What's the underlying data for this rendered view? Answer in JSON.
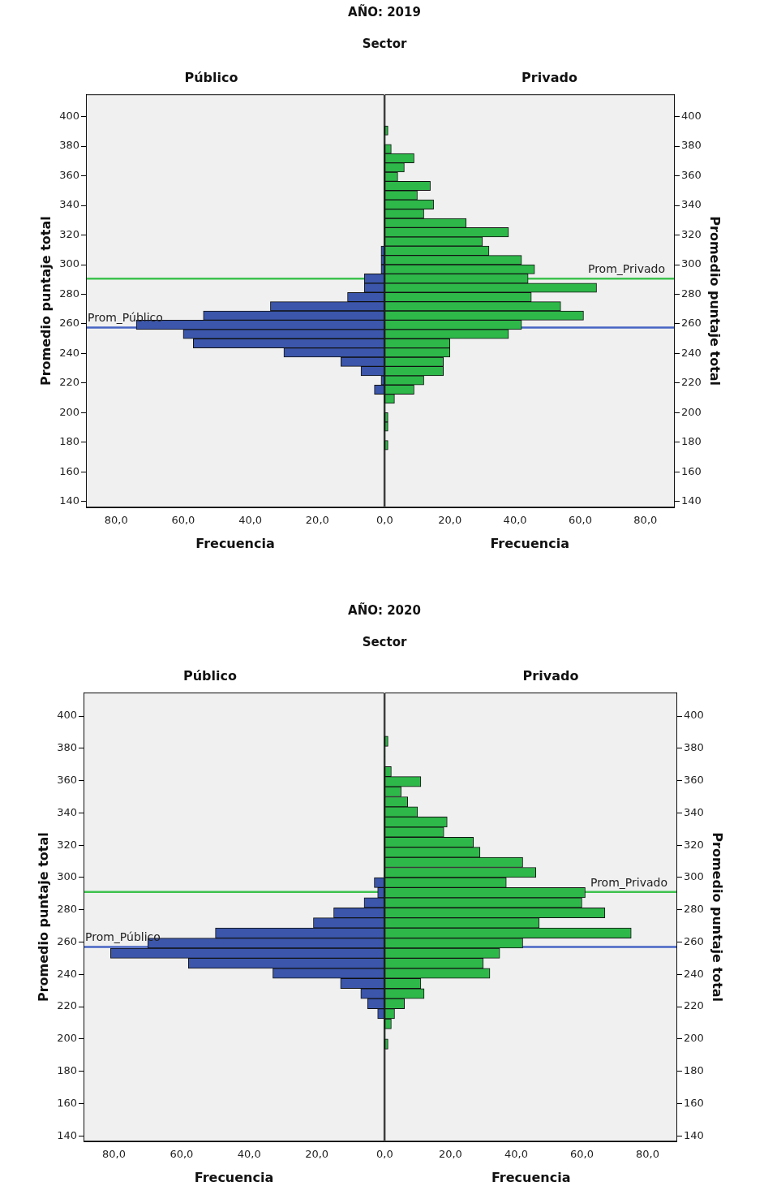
{
  "chart_data": [
    {
      "type": "histogram",
      "orientation": "horizontal",
      "title": "Público",
      "annotations": [
        "AÑO: 2019",
        "Sector"
      ],
      "xlabel": "Frecuencia",
      "ylabel": "Promedio puntaje total",
      "bins": [
        175,
        181.25,
        187.5,
        193.75,
        200,
        206.25,
        212.5,
        218.75,
        225,
        231.25,
        237.5,
        243.75,
        250,
        256.25,
        262.5,
        268.75,
        275,
        281.25,
        287.5,
        293.75,
        300,
        306.25,
        312.5,
        318.75,
        325,
        331.25,
        337.5,
        343.75,
        350,
        356.25,
        362.5,
        368.75,
        375,
        381.25,
        387.5,
        393.75
      ],
      "color": "#3b56aa",
      "values": [
        0,
        0,
        0,
        0,
        0,
        0,
        3,
        1,
        7,
        13,
        30,
        57,
        60,
        74,
        54,
        34,
        11,
        6,
        6,
        1,
        1,
        1,
        0,
        0,
        0,
        0,
        0,
        0,
        0,
        0,
        0,
        0,
        0,
        0,
        0
      ],
      "xlim": [
        89,
        0
      ],
      "xticks": [
        {
          "value": 80,
          "label": "80,0"
        },
        {
          "value": 60,
          "label": "60,0"
        },
        {
          "value": 40,
          "label": "40,0"
        },
        {
          "value": 20,
          "label": "20,0"
        },
        {
          "value": 0,
          "label": null
        }
      ],
      "ylim": [
        136,
        415
      ],
      "yticks": [
        140,
        160,
        180,
        200,
        220,
        240,
        260,
        280,
        300,
        320,
        340,
        360,
        380,
        400
      ],
      "ref_lines": [
        {
          "axis": "y",
          "value": 257.5,
          "label": "Prom_Público",
          "color": "#4664c4"
        },
        {
          "axis": "y",
          "value": 290.5,
          "color": "#3ec24f"
        }
      ]
    },
    {
      "type": "histogram",
      "orientation": "horizontal",
      "title": "Privado",
      "xlabel": "Frecuencia",
      "ylabel": "Promedio puntaje total",
      "bins": [
        175,
        181.25,
        187.5,
        193.75,
        200,
        206.25,
        212.5,
        218.75,
        225,
        231.25,
        237.5,
        243.75,
        250,
        256.25,
        262.5,
        268.75,
        275,
        281.25,
        287.5,
        293.75,
        300,
        306.25,
        312.5,
        318.75,
        325,
        331.25,
        337.5,
        343.75,
        350,
        356.25,
        362.5,
        368.75,
        375,
        381.25,
        387.5,
        393.75
      ],
      "color": "#2eb84a",
      "values": [
        1,
        0,
        1,
        1,
        0,
        3,
        9,
        12,
        18,
        18,
        20,
        20,
        38,
        42,
        61,
        54,
        45,
        65,
        44,
        46,
        42,
        32,
        30,
        38,
        25,
        12,
        15,
        10,
        14,
        4,
        6,
        9,
        2,
        0,
        1
      ],
      "xlim": [
        0,
        89
      ],
      "xticks": [
        {
          "value": 0,
          "label": "0,0"
        },
        {
          "value": 20,
          "label": "20,0"
        },
        {
          "value": 40,
          "label": "40,0"
        },
        {
          "value": 60,
          "label": "60,0"
        },
        {
          "value": 80,
          "label": "80,0"
        }
      ],
      "ylim": [
        136,
        415
      ],
      "yticks": [
        140,
        160,
        180,
        200,
        220,
        240,
        260,
        280,
        300,
        320,
        340,
        360,
        380,
        400
      ],
      "ref_lines": [
        {
          "axis": "y",
          "value": 290.5,
          "label": "Prom_Privado",
          "color": "#3ec24f"
        },
        {
          "axis": "y",
          "value": 257.5,
          "color": "#4664c4"
        }
      ]
    },
    {
      "type": "histogram",
      "orientation": "horizontal",
      "title": "Público",
      "annotations": [
        "AÑO: 2020",
        "Sector"
      ],
      "xlabel": "Frecuencia",
      "ylabel": "Promedio puntaje total",
      "bins": [
        193.75,
        200,
        206.25,
        212.5,
        218.75,
        225,
        231.25,
        237.5,
        243.75,
        250,
        256.25,
        262.5,
        268.75,
        275,
        281.25,
        287.5,
        293.75,
        300,
        306.25,
        312.5,
        318.75,
        325,
        331.25,
        337.5,
        343.75,
        350,
        356.25,
        362.5,
        368.75,
        375,
        381.25,
        387.5
      ],
      "color": "#3b56aa",
      "values": [
        0,
        0,
        0,
        2,
        5,
        7,
        13,
        33,
        58,
        81,
        70,
        50,
        21,
        15,
        6,
        2,
        3,
        0,
        0,
        0,
        0,
        0,
        0,
        0,
        0,
        0,
        0,
        0,
        0,
        0,
        0
      ],
      "xlim": [
        89,
        0
      ],
      "xticks": [
        {
          "value": 80,
          "label": "80,0"
        },
        {
          "value": 60,
          "label": "60,0"
        },
        {
          "value": 40,
          "label": "40,0"
        },
        {
          "value": 20,
          "label": "20,0"
        },
        {
          "value": 0,
          "label": null
        }
      ],
      "ylim": [
        136.5,
        414.5
      ],
      "yticks": [
        140,
        160,
        180,
        200,
        220,
        240,
        260,
        280,
        300,
        320,
        340,
        360,
        380,
        400
      ],
      "ref_lines": [
        {
          "axis": "y",
          "value": 257,
          "label": "Prom_Público",
          "color": "#4664c4"
        },
        {
          "axis": "y",
          "value": 291,
          "color": "#3ec24f"
        }
      ]
    },
    {
      "type": "histogram",
      "orientation": "horizontal",
      "title": "Privado",
      "xlabel": "Frecuencia",
      "ylabel": "Promedio puntaje total",
      "bins": [
        193.75,
        200,
        206.25,
        212.5,
        218.75,
        225,
        231.25,
        237.5,
        243.75,
        250,
        256.25,
        262.5,
        268.75,
        275,
        281.25,
        287.5,
        293.75,
        300,
        306.25,
        312.5,
        318.75,
        325,
        331.25,
        337.5,
        343.75,
        350,
        356.25,
        362.5,
        368.75,
        375,
        381.25,
        387.5
      ],
      "color": "#2eb84a",
      "values": [
        1,
        0,
        2,
        3,
        6,
        12,
        11,
        32,
        30,
        35,
        42,
        75,
        47,
        67,
        60,
        61,
        37,
        46,
        42,
        29,
        27,
        18,
        19,
        10,
        7,
        5,
        11,
        2,
        0,
        0,
        1
      ],
      "xlim": [
        0,
        89
      ],
      "xticks": [
        {
          "value": 0,
          "label": "0,0"
        },
        {
          "value": 20,
          "label": "20,0"
        },
        {
          "value": 40,
          "label": "40,0"
        },
        {
          "value": 60,
          "label": "60,0"
        },
        {
          "value": 80,
          "label": "80,0"
        }
      ],
      "ylim": [
        136.5,
        414.5
      ],
      "yticks": [
        140,
        160,
        180,
        200,
        220,
        240,
        260,
        280,
        300,
        320,
        340,
        360,
        380,
        400
      ],
      "ref_lines": [
        {
          "axis": "y",
          "value": 291,
          "label": "Prom_Privado",
          "color": "#3ec24f"
        },
        {
          "axis": "y",
          "value": 257,
          "color": "#4664c4"
        }
      ]
    }
  ]
}
